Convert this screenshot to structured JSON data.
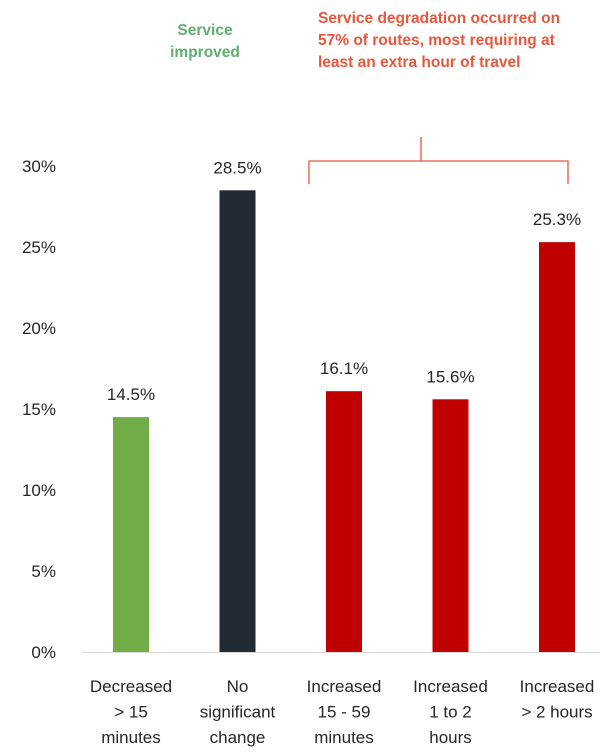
{
  "annotations": {
    "improved": "Service improved",
    "degraded": "Service degradation occurred on 57% of routes, most requiring at least an extra hour of travel"
  },
  "colors": {
    "improved": "#70ad47",
    "no_change": "#222a35",
    "degraded": "#c00000",
    "bracket": "#e8573c",
    "axis": "#d9d9d9"
  },
  "chart_data": {
    "type": "bar",
    "categories": [
      "Decreased > 15 minutes",
      "No significant change",
      "Increased 15 - 59 minutes",
      "Increased 1 to 2 hours",
      "Increased > 2 hours"
    ],
    "category_lines": [
      [
        "Decreased",
        "> 15",
        "minutes"
      ],
      [
        "No",
        "significant",
        "change"
      ],
      [
        "Increased",
        "15 - 59",
        "minutes"
      ],
      [
        "Increased",
        "1 to 2",
        "hours"
      ],
      [
        "Increased",
        "> 2 hours"
      ]
    ],
    "values": [
      14.5,
      28.5,
      16.1,
      15.6,
      25.3
    ],
    "data_labels": [
      "14.5%",
      "28.5%",
      "16.1%",
      "15.6%",
      "25.3%"
    ],
    "bar_colors": [
      "#70ad47",
      "#222a35",
      "#c00000",
      "#c00000",
      "#c00000"
    ],
    "ylim": [
      0,
      30
    ],
    "yticks": [
      0,
      5,
      10,
      15,
      20,
      25,
      30
    ],
    "ytick_labels": [
      "0%",
      "5%",
      "10%",
      "15%",
      "20%",
      "25%",
      "30%"
    ],
    "title": "",
    "xlabel": "",
    "ylabel": "",
    "grid": false,
    "legend": "none"
  }
}
